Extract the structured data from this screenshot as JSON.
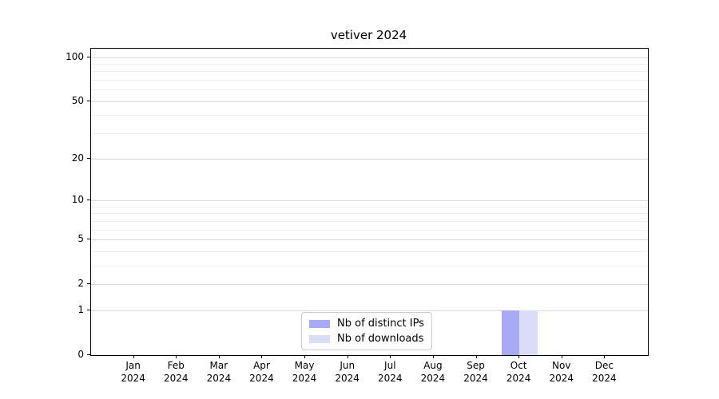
{
  "chart_data": {
    "type": "bar",
    "title": "vetiver 2024",
    "categories": [
      {
        "month": "Jan",
        "year": "2024"
      },
      {
        "month": "Feb",
        "year": "2024"
      },
      {
        "month": "Mar",
        "year": "2024"
      },
      {
        "month": "Apr",
        "year": "2024"
      },
      {
        "month": "May",
        "year": "2024"
      },
      {
        "month": "Jun",
        "year": "2024"
      },
      {
        "month": "Jul",
        "year": "2024"
      },
      {
        "month": "Aug",
        "year": "2024"
      },
      {
        "month": "Sep",
        "year": "2024"
      },
      {
        "month": "Oct",
        "year": "2024"
      },
      {
        "month": "Nov",
        "year": "2024"
      },
      {
        "month": "Dec",
        "year": "2024"
      }
    ],
    "series": [
      {
        "name": "Nb of distinct IPs",
        "color": "#a9aaf6",
        "values": [
          0,
          0,
          0,
          0,
          0,
          0,
          0,
          0,
          0,
          1,
          0,
          0
        ]
      },
      {
        "name": "Nb of downloads",
        "color": "#dbdcf8",
        "values": [
          0,
          0,
          0,
          0,
          0,
          0,
          0,
          0,
          0,
          1,
          0,
          0
        ]
      }
    ],
    "xlabel": "",
    "ylabel": "",
    "yscale": "log1p",
    "ylim": [
      0,
      114
    ],
    "yticks": [
      0,
      1,
      2,
      5,
      10,
      20,
      50,
      100
    ],
    "yticks_minor": [
      3,
      4,
      6,
      7,
      8,
      9,
      30,
      40,
      60,
      70,
      80,
      90
    ],
    "grid": true,
    "legend_position": "bottom-center"
  }
}
